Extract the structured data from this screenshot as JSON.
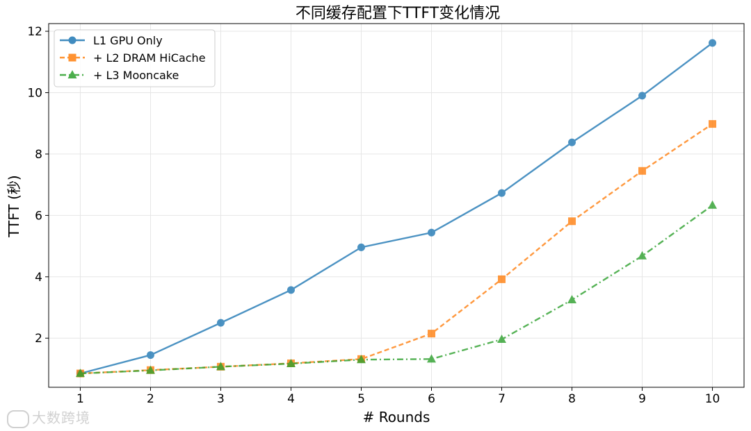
{
  "chart_data": {
    "type": "line",
    "title": "不同缓存配置下TTFT变化情况",
    "xlabel": "# Rounds",
    "ylabel": "TTFT (秒)",
    "x": [
      1,
      2,
      3,
      4,
      5,
      6,
      7,
      8,
      9,
      10
    ],
    "xlim": [
      0.55,
      10.45
    ],
    "ylim": [
      0.4,
      12.25
    ],
    "yticks": [
      2,
      4,
      6,
      8,
      10,
      12
    ],
    "grid": true,
    "legend_position": "top-left",
    "series": [
      {
        "name": "L1 GPU Only",
        "color": "#1f77b4",
        "marker": "circle",
        "linestyle": "solid",
        "values": [
          0.85,
          1.45,
          2.5,
          3.57,
          4.96,
          5.44,
          6.73,
          8.38,
          9.9,
          11.62
        ]
      },
      {
        "name": "+ L2 DRAM HiCache",
        "color": "#ff7f0e",
        "marker": "square",
        "linestyle": "dashed",
        "values": [
          0.85,
          0.96,
          1.07,
          1.18,
          1.32,
          2.15,
          3.92,
          5.81,
          7.45,
          8.98
        ]
      },
      {
        "name": "+ L3 Mooncake",
        "color": "#2ca02c",
        "marker": "triangle",
        "linestyle": "dashdot",
        "values": [
          0.85,
          0.95,
          1.07,
          1.17,
          1.3,
          1.32,
          1.96,
          3.25,
          4.68,
          6.33
        ]
      }
    ]
  },
  "watermark": {
    "text": "大数跨境"
  }
}
